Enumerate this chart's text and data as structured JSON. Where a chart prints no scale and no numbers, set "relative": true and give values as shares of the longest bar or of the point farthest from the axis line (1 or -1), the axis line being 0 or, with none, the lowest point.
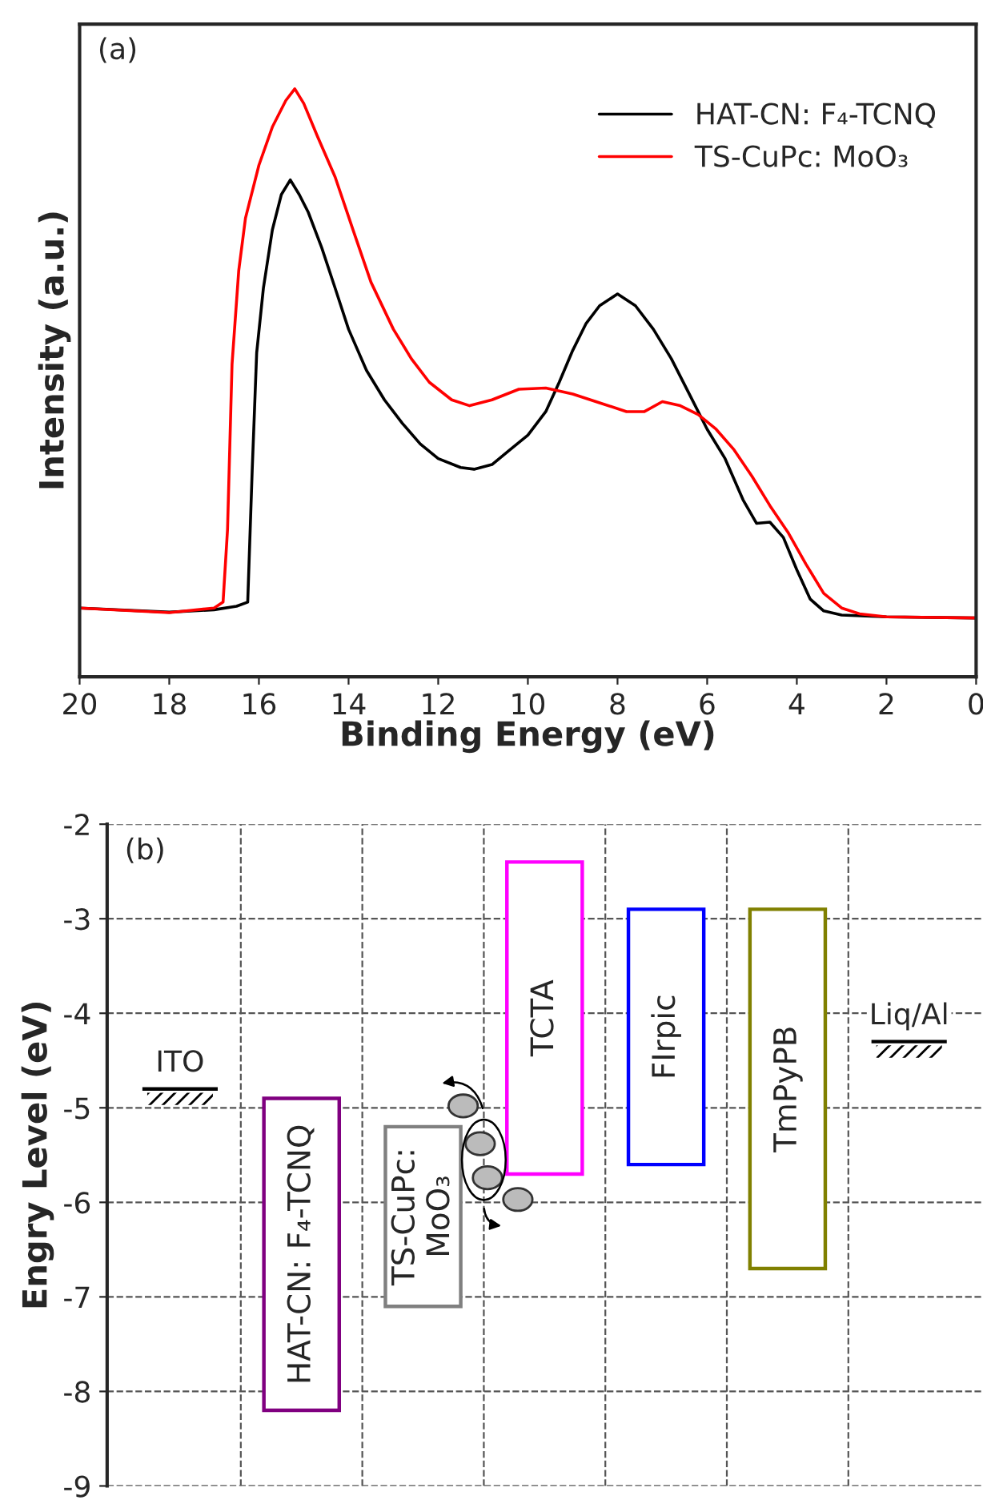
{
  "chart_data": [
    {
      "type": "line",
      "relative": true,
      "xlabel": "Binding Energy (eV)",
      "ylabel": "Intensity (a.u.)",
      "xlim": [
        20,
        0
      ],
      "xticks": [
        20,
        18,
        16,
        14,
        12,
        10,
        8,
        6,
        4,
        2,
        0
      ],
      "tick_labels": "x",
      "legend": "top right",
      "grid": false,
      "annotations": [
        "(a)"
      ],
      "series": [
        {
          "name": "HAT-CN: F₄-TCNQ",
          "color": "#000000",
          "x": [
            20,
            18,
            17,
            16.5,
            16.25,
            16.15,
            16.05,
            15.9,
            15.7,
            15.5,
            15.3,
            15.1,
            14.9,
            14.6,
            14.3,
            14.0,
            13.6,
            13.2,
            12.8,
            12.4,
            12.0,
            11.5,
            11.2,
            10.8,
            10.4,
            10.0,
            9.6,
            9.3,
            9.0,
            8.7,
            8.4,
            8.0,
            7.6,
            7.2,
            6.8,
            6.4,
            6.0,
            5.6,
            5.2,
            4.9,
            4.6,
            4.3,
            4.0,
            3.7,
            3.4,
            3.0,
            2.0,
            0
          ],
          "values": [
            0.117,
            0.11,
            0.114,
            0.12,
            0.127,
            0.351,
            0.551,
            0.661,
            0.76,
            0.82,
            0.845,
            0.82,
            0.79,
            0.73,
            0.661,
            0.591,
            0.521,
            0.471,
            0.431,
            0.396,
            0.371,
            0.356,
            0.353,
            0.361,
            0.386,
            0.411,
            0.451,
            0.501,
            0.555,
            0.601,
            0.631,
            0.651,
            0.631,
            0.591,
            0.541,
            0.481,
            0.421,
            0.371,
            0.301,
            0.261,
            0.263,
            0.237,
            0.182,
            0.132,
            0.112,
            0.105,
            0.102,
            0.1
          ]
        },
        {
          "name": "TS-CuPc: MoO₃",
          "color": "#ff0000",
          "x": [
            20,
            18,
            17,
            16.8,
            16.7,
            16.6,
            16.45,
            16.3,
            16.0,
            15.7,
            15.4,
            15.2,
            15.0,
            14.7,
            14.3,
            13.9,
            13.5,
            13.0,
            12.6,
            12.2,
            11.7,
            11.3,
            10.8,
            10.2,
            9.6,
            9.0,
            8.4,
            7.8,
            7.4,
            7.0,
            6.6,
            6.2,
            5.8,
            5.4,
            5.0,
            4.6,
            4.2,
            3.8,
            3.4,
            3.0,
            2.6,
            2.0,
            0
          ],
          "values": [
            0.117,
            0.109,
            0.117,
            0.127,
            0.251,
            0.531,
            0.691,
            0.78,
            0.87,
            0.935,
            0.98,
            1.0,
            0.975,
            0.92,
            0.85,
            0.76,
            0.671,
            0.591,
            0.541,
            0.501,
            0.471,
            0.461,
            0.471,
            0.489,
            0.491,
            0.481,
            0.466,
            0.451,
            0.451,
            0.468,
            0.461,
            0.446,
            0.421,
            0.386,
            0.341,
            0.291,
            0.246,
            0.192,
            0.142,
            0.117,
            0.107,
            0.102,
            0.1
          ]
        }
      ]
    },
    {
      "type": "bar",
      "ylabel": "Engry Level (eV)",
      "categories": [
        null,
        null,
        null,
        null,
        null,
        null,
        null
      ],
      "ylim": [
        -9,
        -2
      ],
      "yticks": [
        -9,
        -8,
        -7,
        -6,
        -5,
        -4,
        -3,
        -2
      ],
      "tick_labels": "y",
      "grid": true,
      "line_style": "dashed",
      "base": [
        -4.8,
        -8.2,
        -7.1,
        -5.7,
        -5.6,
        -6.7,
        -4.3
      ],
      "values": [
        0,
        3.3,
        1.9,
        3.3,
        2.7,
        3.8,
        0
      ],
      "colors": [
        "#000000",
        "#800080",
        "#808080",
        "#ff00ff",
        "#0000ff",
        "#808000",
        "#000000"
      ],
      "annotations": [
        "(b)",
        "ITO",
        "HAT-CN: F₄-TCNQ",
        "TS-CuPc:\nMoO₃",
        "TCTA",
        "FIrpic",
        "TmPyPB",
        "Liq/Al"
      ]
    }
  ]
}
